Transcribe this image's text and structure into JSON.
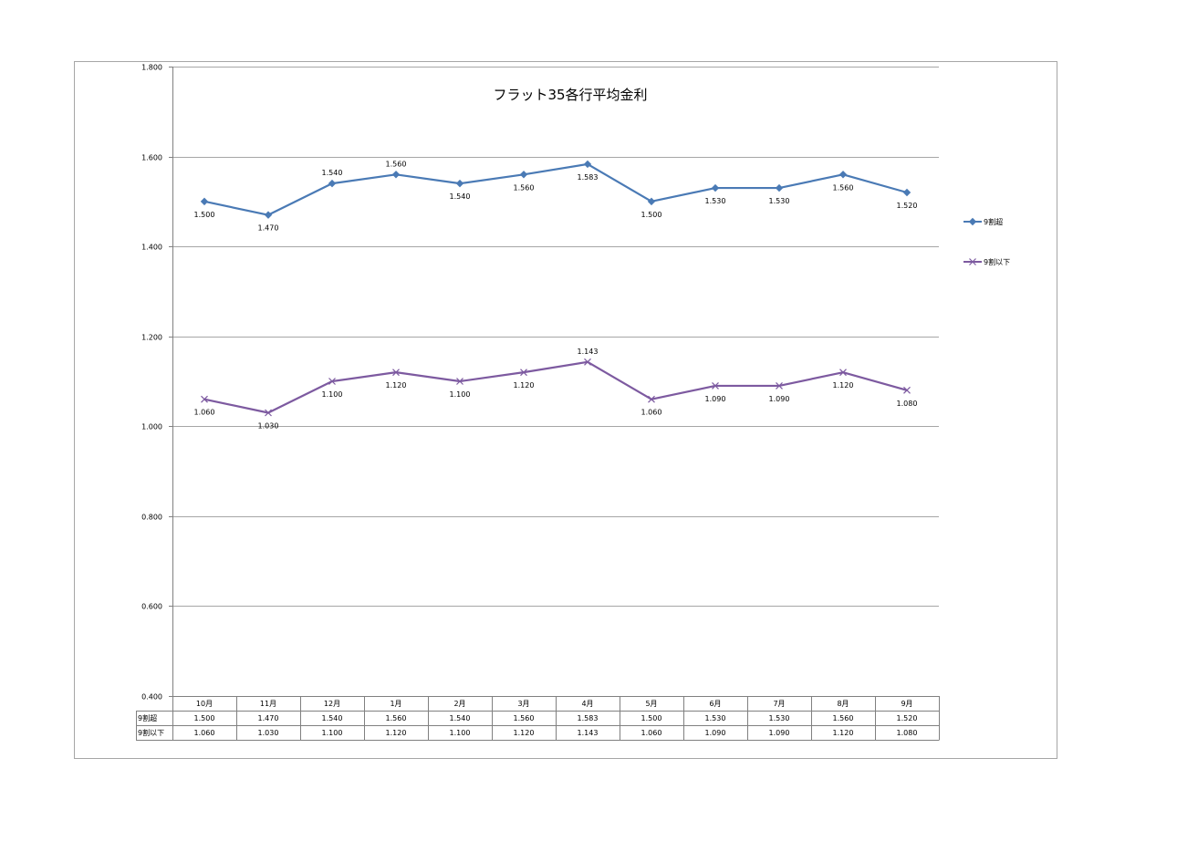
{
  "chart_data": {
    "type": "line",
    "title": "フラット35各行平均金利",
    "categories": [
      "10月",
      "11月",
      "12月",
      "1月",
      "2月",
      "3月",
      "4月",
      "5月",
      "6月",
      "7月",
      "8月",
      "9月"
    ],
    "series": [
      {
        "name": "9割超",
        "values": [
          1.5,
          1.47,
          1.54,
          1.56,
          1.54,
          1.56,
          1.583,
          1.5,
          1.53,
          1.53,
          1.56,
          1.52
        ],
        "labels": [
          "1.500",
          "1.470",
          "1.540",
          "1.560",
          "1.540",
          "1.560",
          "1.583",
          "1.500",
          "1.530",
          "1.530",
          "1.560",
          "1.520"
        ],
        "color": "#4a7ab5",
        "marker": "diamond"
      },
      {
        "name": "9割以下",
        "values": [
          1.06,
          1.03,
          1.1,
          1.12,
          1.1,
          1.12,
          1.143,
          1.06,
          1.09,
          1.09,
          1.12,
          1.08
        ],
        "labels": [
          "1.060",
          "1.030",
          "1.100",
          "1.120",
          "1.100",
          "1.120",
          "1.143",
          "1.060",
          "1.090",
          "1.090",
          "1.120",
          "1.080"
        ],
        "color": "#7d5aa0",
        "marker": "x"
      }
    ],
    "ylim": [
      0.4,
      1.8
    ],
    "yticks": [
      "1.800",
      "1.600",
      "1.400",
      "1.200",
      "1.000",
      "0.800",
      "0.600",
      "0.400"
    ],
    "grid": true,
    "legend": "right",
    "data_table": true
  }
}
